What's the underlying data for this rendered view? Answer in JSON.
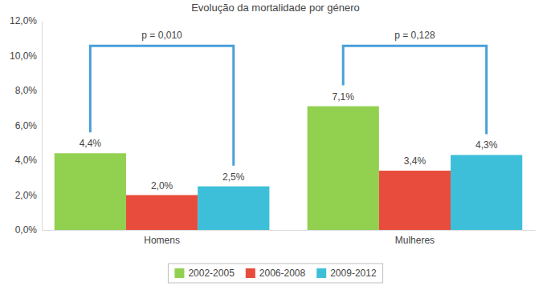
{
  "chart_data": {
    "type": "bar",
    "title": "Evolução da mortalidade por género",
    "categories": [
      "Homens",
      "Mulheres"
    ],
    "series": [
      {
        "name": "2002-2005",
        "color": "#92d050",
        "values": [
          4.4,
          7.1
        ],
        "value_labels": [
          "4,4%",
          "7,1%"
        ]
      },
      {
        "name": "2006-2008",
        "color": "#e84c3d",
        "values": [
          2.0,
          3.4
        ],
        "value_labels": [
          "2,0%",
          "3,4%"
        ]
      },
      {
        "name": "2009-2012",
        "color": "#3dbfd9",
        "values": [
          2.5,
          4.3
        ],
        "value_labels": [
          "2,5%",
          "4,3%"
        ]
      }
    ],
    "ylim": [
      0,
      12
    ],
    "yticks": [
      {
        "value": 0,
        "label": "0,0%"
      },
      {
        "value": 2,
        "label": "2,0%"
      },
      {
        "value": 4,
        "label": "4,0%"
      },
      {
        "value": 6,
        "label": "6,0%"
      },
      {
        "value": 8,
        "label": "8,0%"
      },
      {
        "value": 10,
        "label": "10,0%"
      },
      {
        "value": 12,
        "label": "12,0%"
      }
    ],
    "data_labels": true,
    "grid": false,
    "legend": "bottom",
    "annotations": [
      {
        "text": "p = 0,010",
        "category": "Homens"
      },
      {
        "text": "p = 0,128",
        "category": "Mulheres"
      }
    ]
  }
}
